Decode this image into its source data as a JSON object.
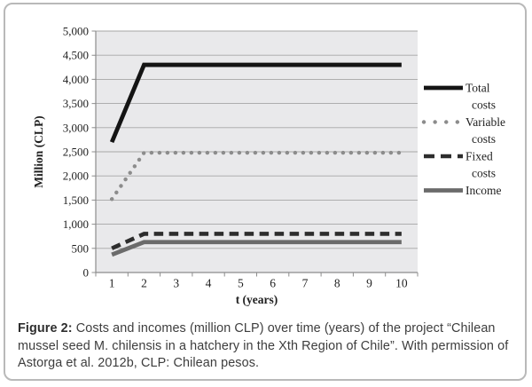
{
  "figure": {
    "caption_label": "Figure 2:",
    "caption_text": " Costs and incomes (million CLP) over time (years) of the project “Chilean mussel seed M. chilensis in a hatchery in the Xth Region of Chile”. With permission of Astorga et al. 2012b, CLP: Chilean pesos."
  },
  "chart_data": {
    "type": "line",
    "x": [
      1,
      2,
      3,
      4,
      5,
      6,
      7,
      8,
      9,
      10
    ],
    "xlabel": "t (years)",
    "ylabel": "Million (CLP)",
    "ylim": [
      0,
      5000
    ],
    "ytick_step": 500,
    "ytick_labels": [
      "0",
      "500",
      "1,000",
      "1,500",
      "2,000",
      "2,500",
      "3,000",
      "3,500",
      "4,000",
      "4,500",
      "5,000"
    ],
    "grid": true,
    "legend_position": "right",
    "colors": {
      "plot_bg": "#e9e9eb",
      "gridline": "#a6a6a6",
      "axis": "#8c8c8c"
    },
    "series": [
      {
        "name": "Total costs",
        "legend_lines": [
          "Total",
          "costs"
        ],
        "color": "#141414",
        "style": "solid",
        "width": 4.8,
        "values": [
          2700,
          4300,
          4300,
          4300,
          4300,
          4300,
          4300,
          4300,
          4300,
          4300
        ]
      },
      {
        "name": "Variable costs",
        "legend_lines": [
          "Variable",
          "costs"
        ],
        "color": "#8c8c8c",
        "style": "dotted",
        "width": 4.4,
        "values": [
          1520,
          2480,
          2480,
          2480,
          2480,
          2480,
          2480,
          2480,
          2480,
          2480
        ]
      },
      {
        "name": "Fixed costs",
        "legend_lines": [
          "Fixed",
          "costs"
        ],
        "color": "#2d2d2d",
        "style": "dashed",
        "width": 4.6,
        "values": [
          500,
          800,
          800,
          800,
          800,
          800,
          800,
          800,
          800,
          800
        ]
      },
      {
        "name": "Income",
        "legend_lines": [
          "Income"
        ],
        "color": "#6b6b6b",
        "style": "solid",
        "width": 4.8,
        "values": [
          370,
          630,
          630,
          630,
          630,
          630,
          630,
          630,
          630,
          630
        ]
      }
    ]
  }
}
